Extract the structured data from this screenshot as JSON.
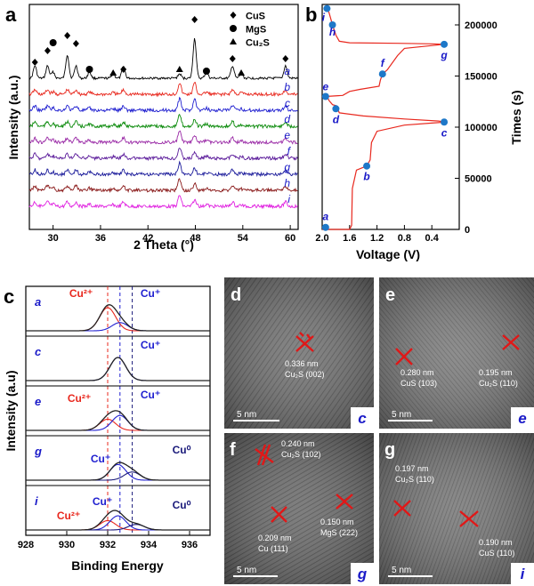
{
  "panel_labels": {
    "a": "a",
    "b": "b",
    "c": "c",
    "d": "d",
    "e": "e",
    "f": "f",
    "g": "g"
  },
  "chart_data": [
    {
      "panel": "a",
      "type": "line",
      "xlabel": "2 Theta (°)",
      "ylabel": "Intensity (a.u.)",
      "xlim": [
        27,
        61
      ],
      "xticks": [
        30,
        36,
        42,
        48,
        54,
        60
      ],
      "series_labels": [
        "a",
        "b",
        "c",
        "d",
        "e",
        "f",
        "g",
        "h",
        "i"
      ],
      "series_colors": [
        "#000000",
        "#e8281e",
        "#2020d0",
        "#0a8a0a",
        "#9a2aa6",
        "#5a1a9a",
        "#1a1a9a",
        "#8a1a1a",
        "#e020e0"
      ],
      "legend": [
        {
          "marker": "diamond",
          "label": "CuS"
        },
        {
          "marker": "circle",
          "label": "MgS"
        },
        {
          "marker": "triangle",
          "label": "Cu₂S"
        }
      ],
      "peaks_cus": [
        27.7,
        29.3,
        31.8,
        32.9,
        38.9,
        47.9,
        52.7,
        59.4
      ],
      "peaks_mgs": [
        30.0,
        34.6,
        49.4
      ],
      "peaks_cu2s": [
        37.6,
        46.0,
        53.8
      ]
    },
    {
      "panel": "b",
      "type": "line",
      "xlabel": "Voltage (V)",
      "ylabel": "Times (s)",
      "xlim": [
        2.0,
        0.0
      ],
      "xticks": [
        2.0,
        1.6,
        1.2,
        0.8,
        0.4
      ],
      "ylim": [
        0,
        220000
      ],
      "yticks": [
        0,
        50000,
        100000,
        150000,
        200000
      ],
      "curve": [
        [
          2.0,
          0
        ],
        [
          1.6,
          0
        ],
        [
          1.57,
          4000
        ],
        [
          1.56,
          40000
        ],
        [
          1.5,
          58000
        ],
        [
          1.35,
          62000
        ],
        [
          1.3,
          68000
        ],
        [
          1.28,
          85000
        ],
        [
          1.2,
          96000
        ],
        [
          0.8,
          102000
        ],
        [
          0.4,
          104000
        ],
        [
          0.2,
          105000
        ],
        [
          0.3,
          106000
        ],
        [
          0.8,
          108000
        ],
        [
          1.4,
          111000
        ],
        [
          1.75,
          114000
        ],
        [
          1.77,
          117000
        ],
        [
          1.8,
          121000
        ],
        [
          1.85,
          122000
        ],
        [
          1.9,
          126000
        ],
        [
          1.92,
          129000
        ],
        [
          1.95,
          130000
        ],
        [
          1.7,
          131000
        ],
        [
          1.6,
          135000
        ],
        [
          1.45,
          137000
        ],
        [
          1.17,
          140000
        ],
        [
          1.15,
          146000
        ],
        [
          1.12,
          152000
        ],
        [
          1.05,
          156000
        ],
        [
          0.9,
          170000
        ],
        [
          0.8,
          177000
        ],
        [
          0.22,
          181000
        ],
        [
          0.4,
          181500
        ],
        [
          0.9,
          182000
        ],
        [
          1.6,
          182500
        ],
        [
          1.75,
          184000
        ],
        [
          1.8,
          190000
        ],
        [
          1.85,
          200000
        ],
        [
          1.87,
          205000
        ],
        [
          1.9,
          212000
        ],
        [
          1.93,
          216000
        ]
      ],
      "points": [
        {
          "label": "a",
          "v": 1.95,
          "t": 2000
        },
        {
          "label": "b",
          "v": 1.35,
          "t": 62000
        },
        {
          "label": "c",
          "v": 0.22,
          "t": 105000
        },
        {
          "label": "d",
          "v": 1.8,
          "t": 118000
        },
        {
          "label": "e",
          "v": 1.95,
          "t": 130000
        },
        {
          "label": "f",
          "v": 1.12,
          "t": 152000
        },
        {
          "label": "g",
          "v": 0.22,
          "t": 181000
        },
        {
          "label": "h",
          "v": 1.85,
          "t": 200000
        },
        {
          "label": "i",
          "v": 1.93,
          "t": 216000
        }
      ]
    },
    {
      "panel": "c",
      "type": "line",
      "xlabel": "Binding Energy",
      "ylabel": "Intensity (a.u)",
      "xlim": [
        928,
        937
      ],
      "xticks": [
        928,
        930,
        932,
        934,
        936
      ],
      "ref_lines": {
        "cu2plus": 932.0,
        "cuplus": 932.6,
        "cu0": 933.2
      },
      "subplots": [
        {
          "label": "a",
          "components": [
            {
              "name": "Cu²⁺",
              "center": 932.0,
              "amp": 0.62,
              "color": "#e8281e"
            },
            {
              "name": "Cu⁺",
              "center": 932.6,
              "amp": 0.22,
              "color": "#2020d0"
            }
          ],
          "annotations": [
            "Cu²⁺",
            "Cu⁺"
          ]
        },
        {
          "label": "c",
          "components": [
            {
              "name": "Cu⁺",
              "center": 932.5,
              "amp": 0.62,
              "color": "#2020d0"
            }
          ],
          "annotations": [
            "Cu⁺"
          ]
        },
        {
          "label": "e",
          "components": [
            {
              "name": "Cu²⁺",
              "center": 932.0,
              "amp": 0.3,
              "color": "#e8281e"
            },
            {
              "name": "Cu⁺",
              "center": 932.6,
              "amp": 0.4,
              "color": "#2020d0"
            }
          ],
          "annotations": [
            "Cu²⁺",
            "Cu⁺"
          ]
        },
        {
          "label": "g",
          "components": [
            {
              "name": "Cu⁺",
              "center": 932.5,
              "amp": 0.42,
              "color": "#2020d0"
            },
            {
              "name": "Cu⁰",
              "center": 933.2,
              "amp": 0.22,
              "color": "#1a1a7a"
            }
          ],
          "annotations": [
            "Cu⁺",
            "Cu⁰"
          ]
        },
        {
          "label": "i",
          "components": [
            {
              "name": "Cu²⁺",
              "center": 932.0,
              "amp": 0.25,
              "color": "#e8281e"
            },
            {
              "name": "Cu⁺",
              "center": 932.5,
              "amp": 0.38,
              "color": "#2020d0"
            },
            {
              "name": "Cu⁰",
              "center": 933.4,
              "amp": 0.15,
              "color": "#1a1a7a"
            }
          ],
          "annotations": [
            "Cu²⁺",
            "Cu⁺",
            "Cu⁰"
          ]
        }
      ]
    }
  ],
  "tem": [
    {
      "label": "d",
      "corner": "c",
      "scale": "5 nm",
      "notes": [
        {
          "text": "0.336 nm",
          "text2": "Cu₂S (002)"
        }
      ]
    },
    {
      "label": "e",
      "corner": "e",
      "scale": "5 nm",
      "notes": [
        {
          "text": "0.280 nm",
          "text2": "CuS (103)"
        },
        {
          "text": "0.195 nm",
          "text2": "Cu₂S (110)"
        }
      ]
    },
    {
      "label": "f",
      "corner": "g",
      "scale": "5 nm",
      "notes": [
        {
          "text": "0.240 nm",
          "text2": "Cu₂S (102)"
        },
        {
          "text": "0.209 nm",
          "text2": "Cu (111)"
        },
        {
          "text": "0.150 nm",
          "text2": "MgS (222)"
        }
      ]
    },
    {
      "label": "g",
      "corner": "i",
      "scale": "5 nm",
      "notes": [
        {
          "text": "0.197 nm",
          "text2": "Cu₂S (110)"
        },
        {
          "text": "0.190 nm",
          "text2": "CuS (110)"
        }
      ]
    }
  ]
}
